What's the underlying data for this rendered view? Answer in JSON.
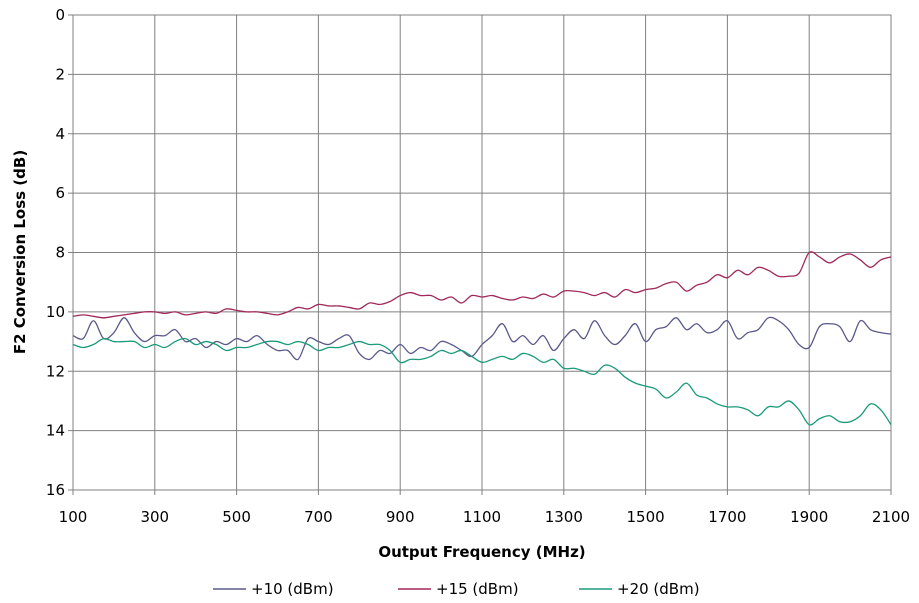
{
  "chart_data": {
    "type": "line",
    "title": "",
    "xlabel": "Output Frequency (MHz)",
    "ylabel": "F2  Conversion Loss (dB)",
    "xlim": [
      100,
      2100
    ],
    "ylim": [
      0,
      16
    ],
    "y_inverted": true,
    "x_ticks": [
      "100",
      "300",
      "500",
      "700",
      "900",
      "1100",
      "1300",
      "1500",
      "1700",
      "1900",
      "2100"
    ],
    "y_ticks": [
      "0",
      "2",
      "4",
      "6",
      "8",
      "10",
      "12",
      "14",
      "16"
    ],
    "grid": true,
    "legend_position": "bottom",
    "series": [
      {
        "name": "+10 (dBm)",
        "color": "#5a5a8a",
        "x": [
          100,
          125,
          150,
          175,
          200,
          225,
          250,
          275,
          300,
          325,
          350,
          375,
          400,
          425,
          450,
          475,
          500,
          525,
          550,
          575,
          600,
          625,
          650,
          675,
          700,
          725,
          750,
          775,
          800,
          825,
          850,
          875,
          900,
          925,
          950,
          975,
          1000,
          1025,
          1050,
          1075,
          1100,
          1125,
          1150,
          1175,
          1200,
          1225,
          1250,
          1275,
          1300,
          1325,
          1350,
          1375,
          1400,
          1425,
          1450,
          1475,
          1500,
          1525,
          1550,
          1575,
          1600,
          1625,
          1650,
          1675,
          1700,
          1725,
          1750,
          1775,
          1800,
          1825,
          1850,
          1875,
          1900,
          1925,
          1950,
          1975,
          2000,
          2025,
          2050,
          2075,
          2100
        ],
        "values": [
          10.8,
          10.9,
          10.3,
          10.9,
          10.7,
          10.2,
          10.7,
          11.0,
          10.8,
          10.8,
          10.6,
          11.0,
          10.9,
          11.2,
          11.0,
          11.1,
          10.9,
          11.0,
          10.8,
          11.1,
          11.3,
          11.3,
          11.6,
          10.9,
          11.0,
          11.1,
          10.9,
          10.8,
          11.4,
          11.6,
          11.3,
          11.4,
          11.1,
          11.4,
          11.2,
          11.3,
          11.0,
          11.1,
          11.3,
          11.5,
          11.1,
          10.8,
          10.4,
          11.0,
          10.8,
          11.1,
          10.8,
          11.3,
          10.9,
          10.6,
          10.9,
          10.3,
          10.8,
          11.1,
          10.8,
          10.4,
          11.0,
          10.6,
          10.5,
          10.2,
          10.6,
          10.4,
          10.7,
          10.6,
          10.3,
          10.9,
          10.7,
          10.6,
          10.2,
          10.3,
          10.6,
          11.1,
          11.2,
          10.5,
          10.4,
          10.5,
          11.0,
          10.3,
          10.6,
          10.7,
          10.75
        ]
      },
      {
        "name": "+15 (dBm)",
        "color": "#a0285a",
        "x": [
          100,
          125,
          150,
          175,
          200,
          225,
          250,
          275,
          300,
          325,
          350,
          375,
          400,
          425,
          450,
          475,
          500,
          525,
          550,
          575,
          600,
          625,
          650,
          675,
          700,
          725,
          750,
          775,
          800,
          825,
          850,
          875,
          900,
          925,
          950,
          975,
          1000,
          1025,
          1050,
          1075,
          1100,
          1125,
          1150,
          1175,
          1200,
          1225,
          1250,
          1275,
          1300,
          1325,
          1350,
          1375,
          1400,
          1425,
          1450,
          1475,
          1500,
          1525,
          1550,
          1575,
          1600,
          1625,
          1650,
          1675,
          1700,
          1725,
          1750,
          1775,
          1800,
          1825,
          1850,
          1875,
          1900,
          1925,
          1950,
          1975,
          2000,
          2025,
          2050,
          2075,
          2100
        ],
        "values": [
          10.15,
          10.1,
          10.15,
          10.2,
          10.15,
          10.1,
          10.05,
          10.0,
          10.0,
          10.05,
          10.0,
          10.1,
          10.05,
          10.0,
          10.05,
          9.9,
          9.95,
          10.0,
          10.0,
          10.05,
          10.1,
          10.0,
          9.85,
          9.9,
          9.75,
          9.8,
          9.8,
          9.85,
          9.9,
          9.7,
          9.75,
          9.65,
          9.45,
          9.35,
          9.45,
          9.45,
          9.6,
          9.5,
          9.7,
          9.45,
          9.5,
          9.45,
          9.55,
          9.6,
          9.5,
          9.55,
          9.4,
          9.5,
          9.3,
          9.3,
          9.35,
          9.45,
          9.35,
          9.5,
          9.25,
          9.35,
          9.25,
          9.2,
          9.05,
          9.0,
          9.3,
          9.1,
          9.0,
          8.75,
          8.85,
          8.6,
          8.75,
          8.5,
          8.6,
          8.8,
          8.8,
          8.7,
          8.0,
          8.15,
          8.35,
          8.15,
          8.05,
          8.25,
          8.5,
          8.25,
          8.15
        ]
      },
      {
        "name": "+20 (dBm)",
        "color": "#1a9a7a",
        "x": [
          100,
          125,
          150,
          175,
          200,
          225,
          250,
          275,
          300,
          325,
          350,
          375,
          400,
          425,
          450,
          475,
          500,
          525,
          550,
          575,
          600,
          625,
          650,
          675,
          700,
          725,
          750,
          775,
          800,
          825,
          850,
          875,
          900,
          925,
          950,
          975,
          1000,
          1025,
          1050,
          1075,
          1100,
          1125,
          1150,
          1175,
          1200,
          1225,
          1250,
          1275,
          1300,
          1325,
          1350,
          1375,
          1400,
          1425,
          1450,
          1475,
          1500,
          1525,
          1550,
          1575,
          1600,
          1625,
          1650,
          1675,
          1700,
          1725,
          1750,
          1775,
          1800,
          1825,
          1850,
          1875,
          1900,
          1925,
          1950,
          1975,
          2000,
          2025,
          2050,
          2075,
          2100
        ],
        "values": [
          11.1,
          11.2,
          11.1,
          10.9,
          11.0,
          11.0,
          11.0,
          11.2,
          11.1,
          11.2,
          11.0,
          10.9,
          11.1,
          11.0,
          11.1,
          11.3,
          11.2,
          11.2,
          11.1,
          11.0,
          11.0,
          11.1,
          11.0,
          11.1,
          11.3,
          11.2,
          11.2,
          11.1,
          11.0,
          11.1,
          11.1,
          11.3,
          11.7,
          11.6,
          11.6,
          11.5,
          11.3,
          11.4,
          11.3,
          11.5,
          11.7,
          11.6,
          11.5,
          11.6,
          11.4,
          11.5,
          11.7,
          11.6,
          11.9,
          11.9,
          12.0,
          12.1,
          11.8,
          11.9,
          12.2,
          12.4,
          12.5,
          12.6,
          12.9,
          12.7,
          12.4,
          12.8,
          12.9,
          13.1,
          13.2,
          13.2,
          13.3,
          13.5,
          13.2,
          13.2,
          13.0,
          13.3,
          13.8,
          13.6,
          13.5,
          13.7,
          13.7,
          13.5,
          13.1,
          13.3,
          13.8
        ]
      }
    ]
  }
}
